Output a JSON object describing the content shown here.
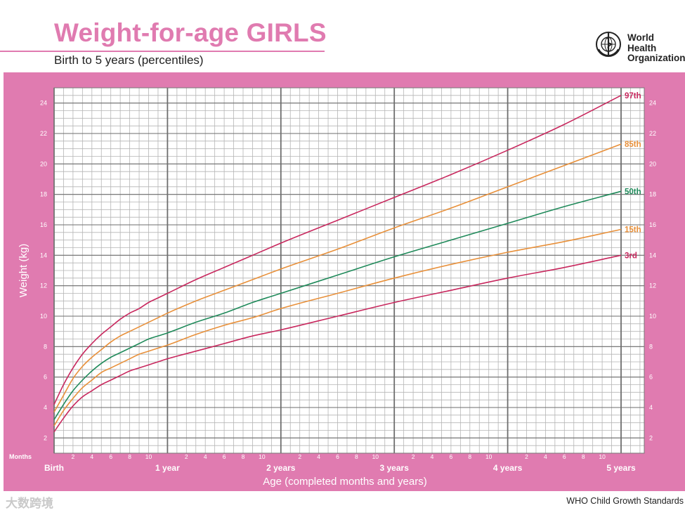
{
  "header": {
    "title": "Weight-for-age GIRLS",
    "subtitle": "Birth to 5 years (percentiles)",
    "org_line1": "World Health",
    "org_line2": "Organization"
  },
  "footer": {
    "source": "WHO Child Growth Standards",
    "watermark": "大数跨境"
  },
  "colors": {
    "brand_pink": "#e07bb0",
    "p97": "#c8285e",
    "p85": "#e8903a",
    "p50": "#1f8a5a",
    "p15": "#e8903a",
    "p3": "#c8285e"
  },
  "chart_data": {
    "type": "line",
    "title": "Weight-for-age GIRLS",
    "ylabel": "Weight (kg)",
    "xlabel": "Age (completed months and years)",
    "months_label": "Months",
    "x_unit": "months",
    "xlim": [
      0,
      60
    ],
    "ylim": [
      1,
      25
    ],
    "y_ticks": [
      2,
      4,
      6,
      8,
      10,
      12,
      14,
      16,
      18,
      20,
      22,
      24
    ],
    "month_tick_labels": [
      "2",
      "4",
      "6",
      "8",
      "10"
    ],
    "year_labels": [
      {
        "month": 0,
        "label": "Birth"
      },
      {
        "month": 12,
        "label": "1 year"
      },
      {
        "month": 24,
        "label": "2 years"
      },
      {
        "month": 36,
        "label": "3 years"
      },
      {
        "month": 48,
        "label": "4 years"
      },
      {
        "month": 60,
        "label": "5 years"
      }
    ],
    "x": [
      0,
      1,
      2,
      3,
      4,
      5,
      6,
      7,
      8,
      9,
      10,
      11,
      12,
      15,
      18,
      21,
      24,
      30,
      36,
      42,
      48,
      54,
      60
    ],
    "series": [
      {
        "name": "97th",
        "color_key": "p97",
        "values": [
          4.2,
          5.5,
          6.6,
          7.5,
          8.2,
          8.8,
          9.3,
          9.8,
          10.2,
          10.5,
          10.9,
          11.2,
          11.5,
          12.4,
          13.2,
          14.0,
          14.8,
          16.3,
          17.8,
          19.3,
          20.9,
          22.6,
          24.5
        ]
      },
      {
        "name": "85th",
        "color_key": "p85",
        "values": [
          3.7,
          4.8,
          5.9,
          6.7,
          7.3,
          7.8,
          8.3,
          8.7,
          9.0,
          9.3,
          9.6,
          9.9,
          10.2,
          11.0,
          11.7,
          12.4,
          13.1,
          14.4,
          15.8,
          17.1,
          18.5,
          19.9,
          21.3
        ]
      },
      {
        "name": "50th",
        "color_key": "p50",
        "values": [
          3.2,
          4.2,
          5.1,
          5.8,
          6.4,
          6.9,
          7.3,
          7.6,
          7.9,
          8.2,
          8.5,
          8.7,
          8.9,
          9.6,
          10.2,
          10.9,
          11.5,
          12.7,
          13.9,
          15.0,
          16.1,
          17.2,
          18.2
        ]
      },
      {
        "name": "15th",
        "color_key": "p15",
        "values": [
          2.8,
          3.8,
          4.6,
          5.3,
          5.8,
          6.3,
          6.6,
          6.9,
          7.2,
          7.5,
          7.7,
          7.9,
          8.1,
          8.8,
          9.4,
          9.9,
          10.5,
          11.5,
          12.5,
          13.4,
          14.2,
          14.9,
          15.7
        ]
      },
      {
        "name": "3rd",
        "color_key": "p3",
        "values": [
          2.4,
          3.3,
          4.1,
          4.7,
          5.1,
          5.5,
          5.8,
          6.1,
          6.4,
          6.6,
          6.8,
          7.0,
          7.2,
          7.7,
          8.2,
          8.7,
          9.1,
          10.0,
          10.9,
          11.7,
          12.5,
          13.2,
          14.0
        ]
      }
    ]
  }
}
